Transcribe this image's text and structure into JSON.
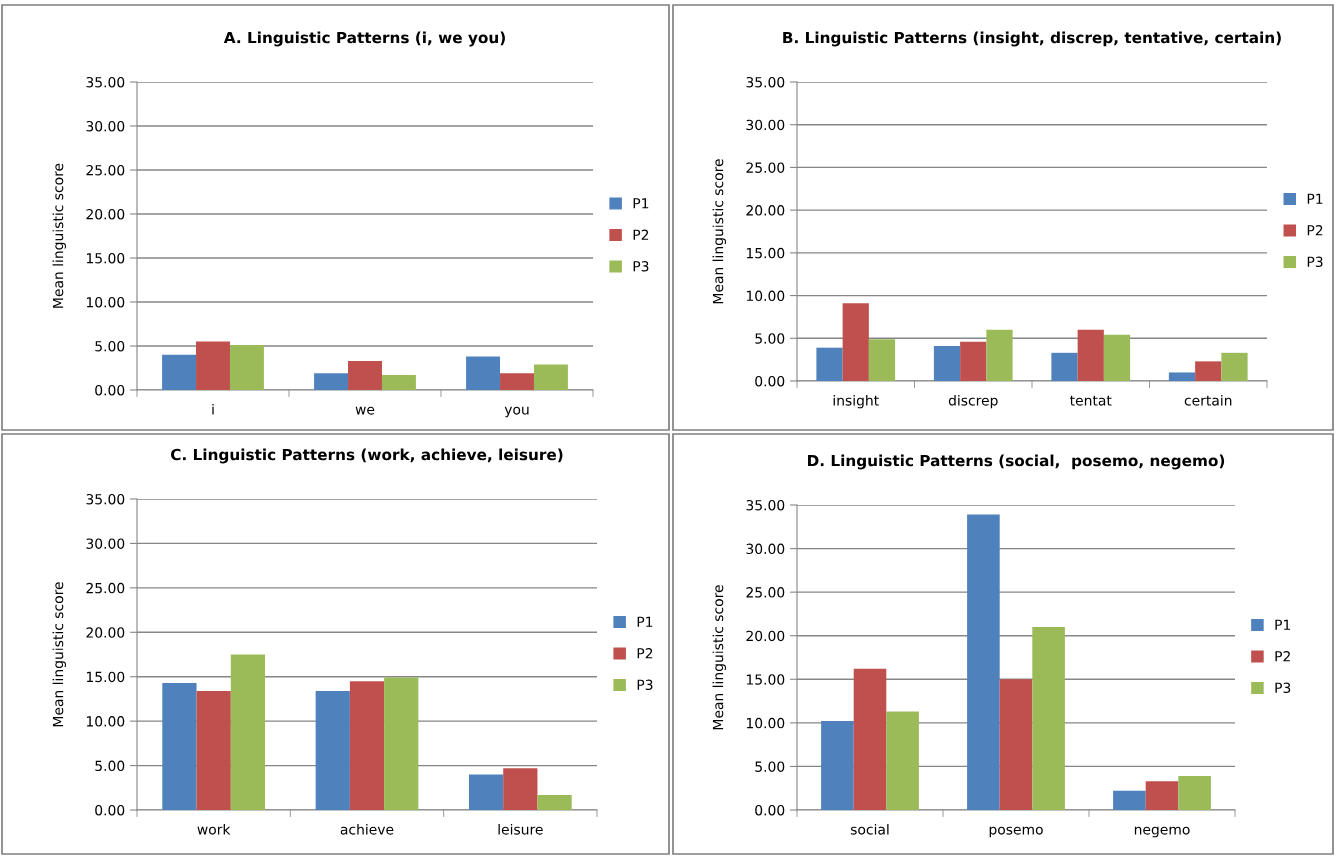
{
  "chart_data": [
    {
      "type": "bar",
      "title": "A. Linguistic Patterns (i, we you)",
      "ylabel": "Mean linguistic score",
      "categories": [
        "i",
        "we",
        "you"
      ],
      "series": [
        {
          "name": "P1",
          "color": "#4f81bd",
          "values": [
            4.0,
            1.9,
            3.8
          ]
        },
        {
          "name": "P2",
          "color": "#c0504d",
          "values": [
            5.5,
            3.3,
            1.9
          ]
        },
        {
          "name": "P3",
          "color": "#9bbb59",
          "values": [
            5.1,
            1.7,
            2.9
          ]
        }
      ],
      "ylim": [
        0,
        35
      ],
      "yticks": [
        {
          "value": 0,
          "label": "0.00"
        },
        {
          "value": 5,
          "label": "5.00"
        },
        {
          "value": 10,
          "label": "10.00"
        },
        {
          "value": 15,
          "label": "15.00"
        },
        {
          "value": 20,
          "label": "20.00"
        },
        {
          "value": 25,
          "label": "25.00"
        },
        {
          "value": 30,
          "label": "30.00"
        },
        {
          "value": 35,
          "label": "35.00"
        }
      ],
      "grid": "y",
      "legend": "right"
    },
    {
      "type": "bar",
      "title": "B. Linguistic Patterns (insight, discrep, tentative, certain)",
      "ylabel": "Mean linguistic score",
      "categories": [
        "insight",
        "discrep",
        "tentat",
        "certain"
      ],
      "series": [
        {
          "name": "P1",
          "color": "#4f81bd",
          "values": [
            3.9,
            4.1,
            3.3,
            1.0
          ]
        },
        {
          "name": "P2",
          "color": "#c0504d",
          "values": [
            9.1,
            4.6,
            6.0,
            2.3
          ]
        },
        {
          "name": "P3",
          "color": "#9bbb59",
          "values": [
            4.9,
            6.0,
            5.4,
            3.3
          ]
        }
      ],
      "ylim": [
        0,
        35
      ],
      "yticks": [
        {
          "value": 0,
          "label": "0.00"
        },
        {
          "value": 5,
          "label": "5.00"
        },
        {
          "value": 10,
          "label": "10.00"
        },
        {
          "value": 15,
          "label": "15.00"
        },
        {
          "value": 20,
          "label": "20.00"
        },
        {
          "value": 25,
          "label": "25.00"
        },
        {
          "value": 30,
          "label": "30.00"
        },
        {
          "value": 35,
          "label": "35.00"
        }
      ],
      "grid": "y",
      "legend": "right"
    },
    {
      "type": "bar",
      "title": "C. Linguistic Patterns (work, achieve, leisure)",
      "ylabel": "Mean linguistic score",
      "categories": [
        "work",
        "achieve",
        "leisure"
      ],
      "series": [
        {
          "name": "P1",
          "color": "#4f81bd",
          "values": [
            14.3,
            13.4,
            4.0
          ]
        },
        {
          "name": "P2",
          "color": "#c0504d",
          "values": [
            13.4,
            14.5,
            4.7
          ]
        },
        {
          "name": "P3",
          "color": "#9bbb59",
          "values": [
            17.5,
            14.9,
            1.7
          ]
        }
      ],
      "ylim": [
        0,
        35
      ],
      "yticks": [
        {
          "value": 0,
          "label": "0.00"
        },
        {
          "value": 5,
          "label": "5.00"
        },
        {
          "value": 10,
          "label": "10.00"
        },
        {
          "value": 15,
          "label": "15.00"
        },
        {
          "value": 20,
          "label": "20.00"
        },
        {
          "value": 25,
          "label": "25.00"
        },
        {
          "value": 30,
          "label": "30.00"
        },
        {
          "value": 35,
          "label": "35.00"
        }
      ],
      "grid": "y",
      "legend": "right"
    },
    {
      "type": "bar",
      "title": "D. Linguistic Patterns (social,  posemo, negemo)",
      "ylabel": "Mean linguistic score",
      "categories": [
        "social",
        "posemo",
        "negemo"
      ],
      "series": [
        {
          "name": "P1",
          "color": "#4f81bd",
          "values": [
            10.2,
            33.9,
            2.2
          ]
        },
        {
          "name": "P2",
          "color": "#c0504d",
          "values": [
            16.2,
            15.0,
            3.3
          ]
        },
        {
          "name": "P3",
          "color": "#9bbb59",
          "values": [
            11.3,
            21.0,
            3.9
          ]
        }
      ],
      "ylim": [
        0,
        35
      ],
      "yticks": [
        {
          "value": 0,
          "label": "0.00"
        },
        {
          "value": 5,
          "label": "5.00"
        },
        {
          "value": 10,
          "label": "10.00"
        },
        {
          "value": 15,
          "label": "15.00"
        },
        {
          "value": 20,
          "label": "20.00"
        },
        {
          "value": 25,
          "label": "25.00"
        },
        {
          "value": 30,
          "label": "30.00"
        },
        {
          "value": 35,
          "label": "35.00"
        }
      ],
      "grid": "y",
      "legend": "right"
    }
  ]
}
